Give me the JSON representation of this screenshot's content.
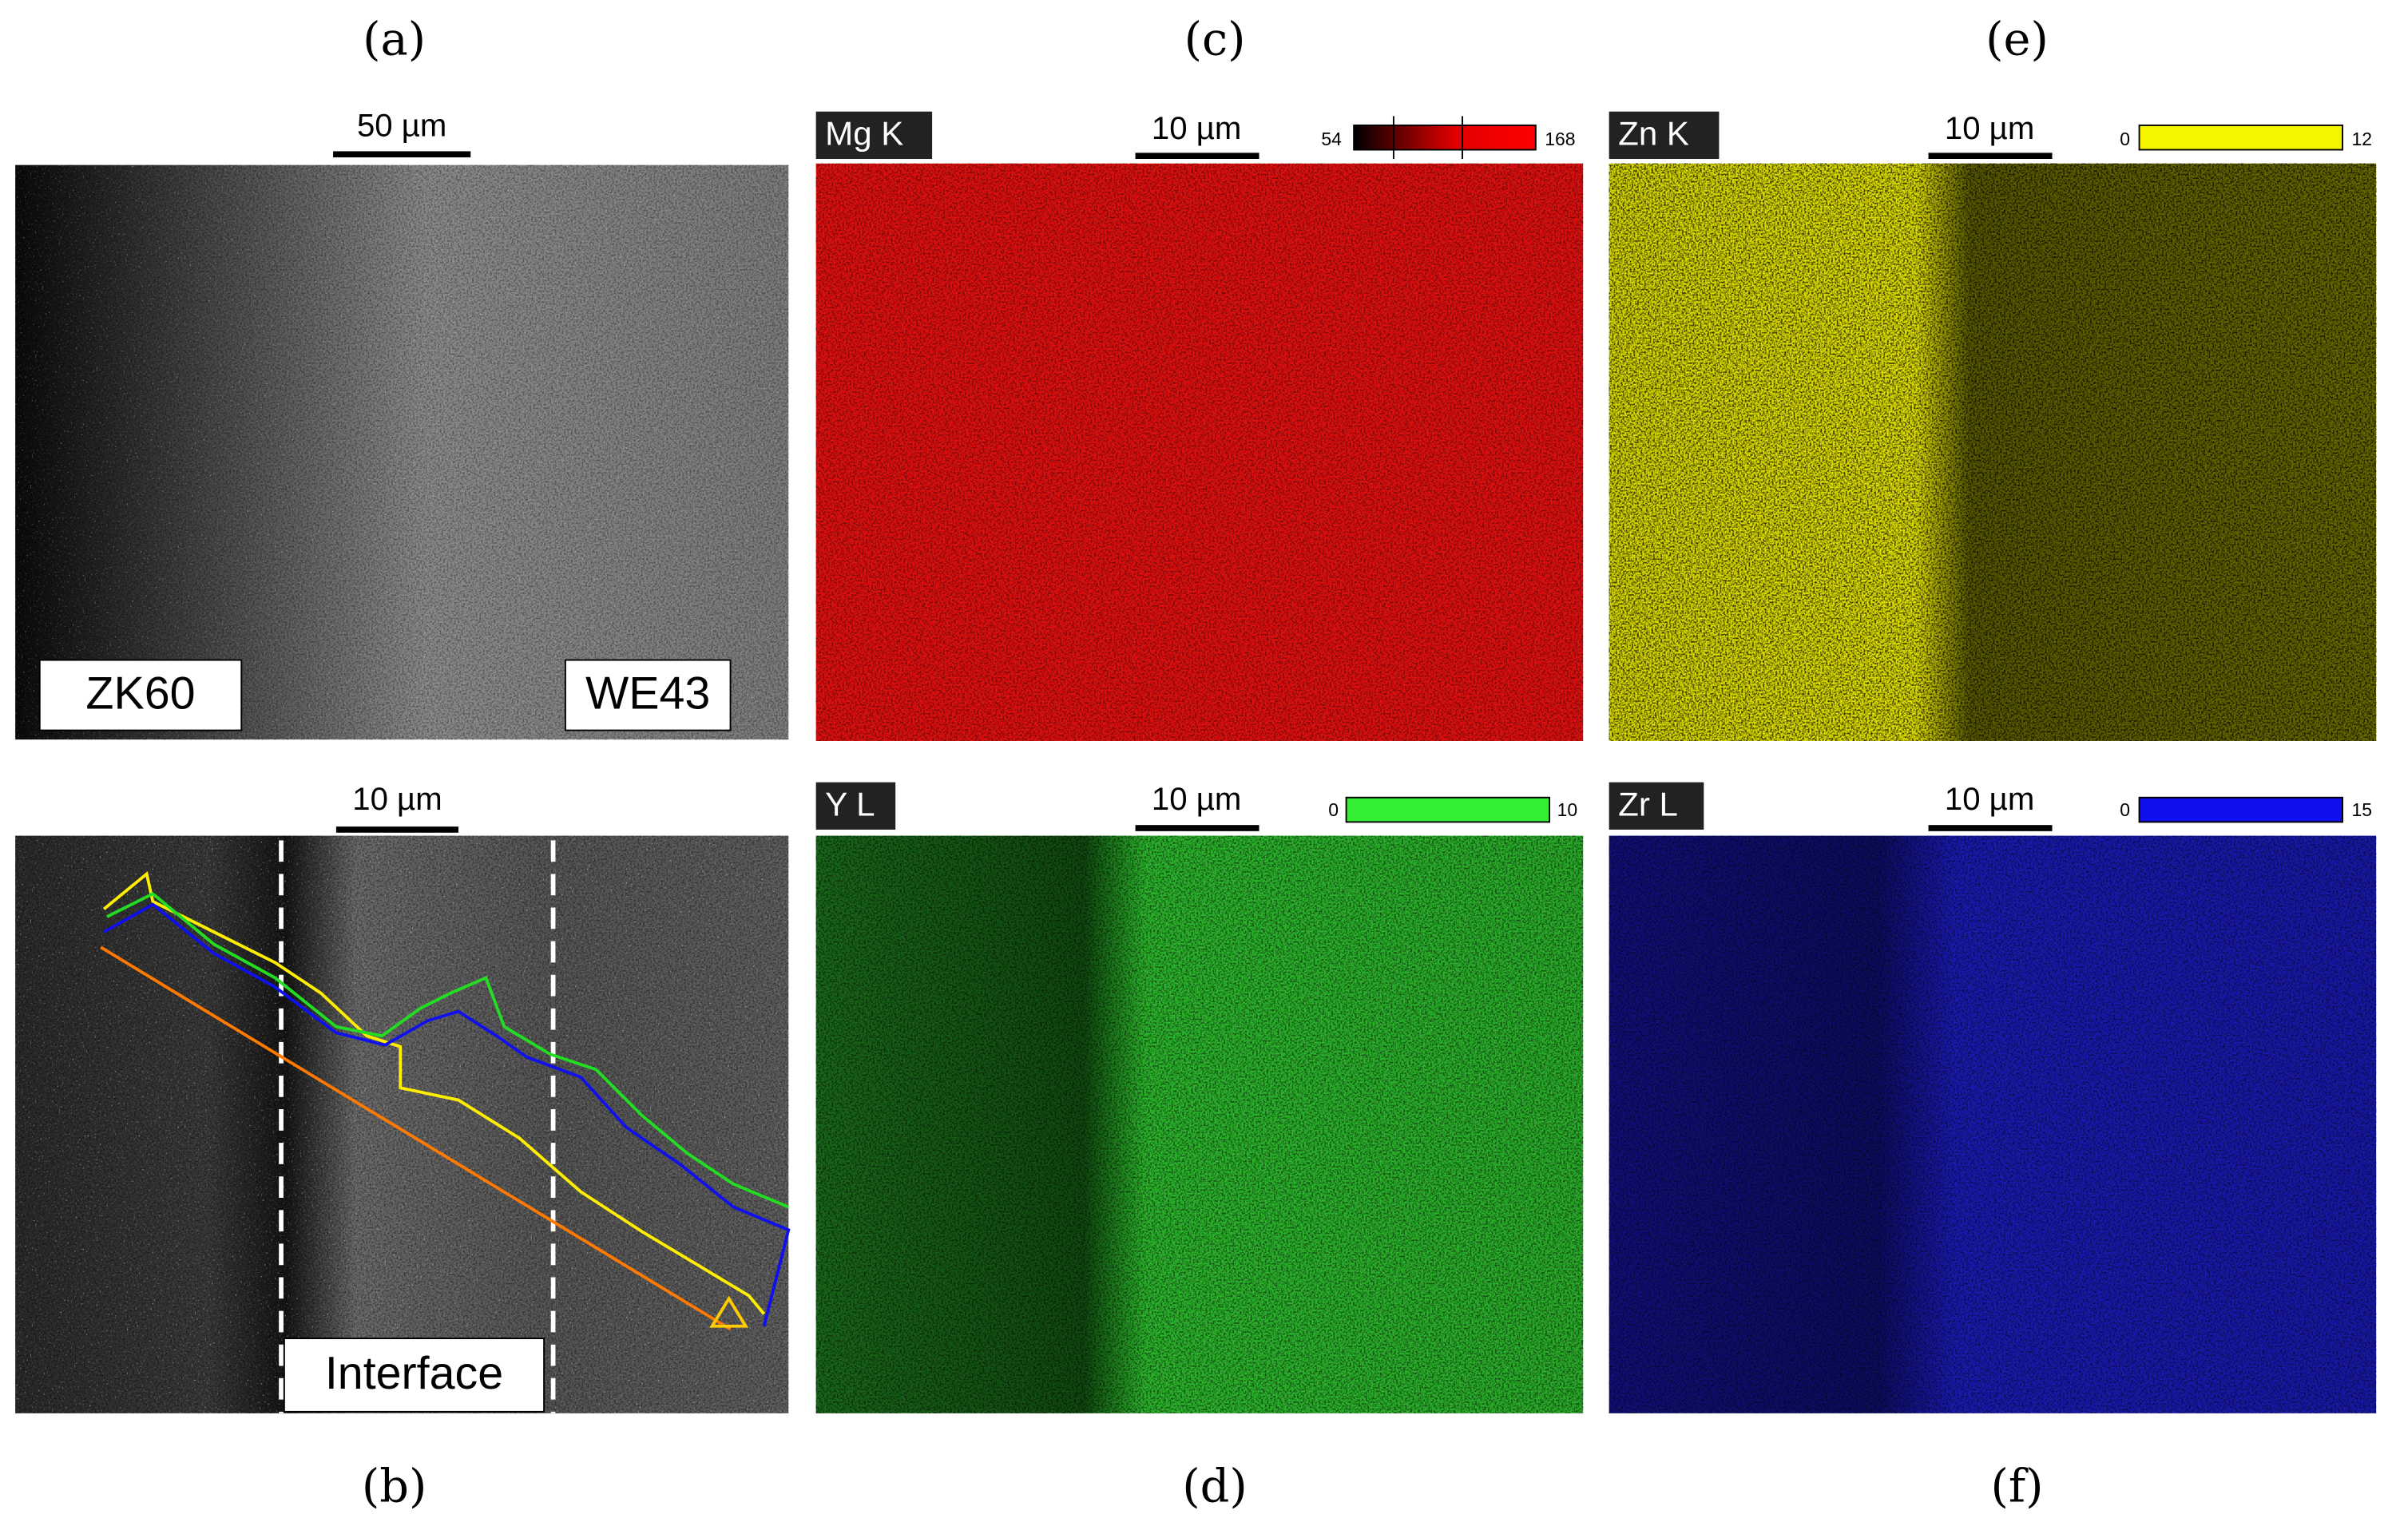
{
  "panels": [
    {
      "label": "(a)",
      "scale_bar": "50 µm",
      "tags": [
        "ZK60",
        "WE43"
      ]
    },
    {
      "label": "(b)",
      "scale_bar": "10 µm",
      "tags": [
        "Interface"
      ]
    },
    {
      "label": "(c)",
      "element": "Mg K",
      "scale_bar": "10 µm",
      "colorbar": {
        "min": 54,
        "max": 168
      }
    },
    {
      "label": "(d)",
      "element": "Y L",
      "scale_bar": "10 µm",
      "colorbar": {
        "min": 0,
        "max": 10
      }
    },
    {
      "label": "(e)",
      "element": "Zn K",
      "scale_bar": "10 µm",
      "colorbar": {
        "min": 0,
        "max": 12
      }
    },
    {
      "label": "(f)",
      "element": "Zr L",
      "scale_bar": "10 µm",
      "colorbar": {
        "min": 0,
        "max": 15
      }
    }
  ]
}
